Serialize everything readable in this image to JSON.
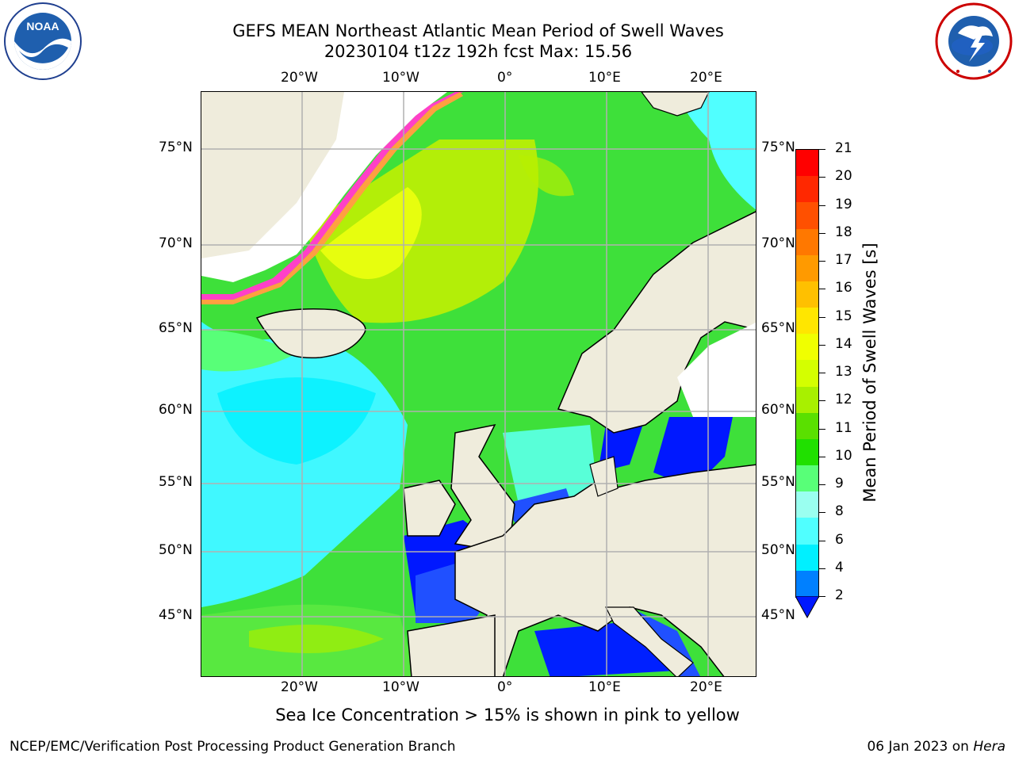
{
  "header": {
    "title_line1": "GEFS MEAN Northeast Atlantic Mean Period of Swell Waves",
    "title_line2": "20230104 t12z 192h fcst   Max: 15.56"
  },
  "logos": {
    "left": {
      "name": "noaa-logo",
      "text": "NOAA",
      "ring_text": "NATIONAL OCEANIC AND ATMOSPHERIC ADMINISTRATION · U.S. DEPARTMENT OF COMMERCE"
    },
    "right": {
      "name": "nws-logo",
      "ring_text": "NATIONAL WEATHER SERVICE"
    }
  },
  "map": {
    "lon_labels": [
      "20°W",
      "10°W",
      "0°",
      "10°E",
      "20°E"
    ],
    "lat_labels": [
      "75°N",
      "70°N",
      "65°N",
      "60°N",
      "55°N",
      "50°N",
      "45°N"
    ]
  },
  "colorbar": {
    "title": "Mean Period of Swell Waves [s]",
    "ticks": [
      "21",
      "20",
      "19",
      "18",
      "17",
      "16",
      "15",
      "14",
      "13",
      "12",
      "11",
      "10",
      "9",
      "8",
      "6",
      "4",
      "2"
    ],
    "colors": [
      "#ff0000",
      "#ff2800",
      "#ff5000",
      "#ff7800",
      "#ff9a00",
      "#ffc000",
      "#ffe600",
      "#f0ff00",
      "#d4ff00",
      "#a8f000",
      "#5ae000",
      "#20e000",
      "#58ff78",
      "#9afff0",
      "#50ffff",
      "#00f0ff",
      "#0080ff",
      "#0018ff"
    ]
  },
  "note": "Sea Ice Concentration > 15% is shown in pink to yellow",
  "footer": {
    "left": "NCEP/EMC/Verification Post Processing Product Generation Branch",
    "right_date": "06 Jan 2023 on ",
    "right_host": "Hera"
  }
}
